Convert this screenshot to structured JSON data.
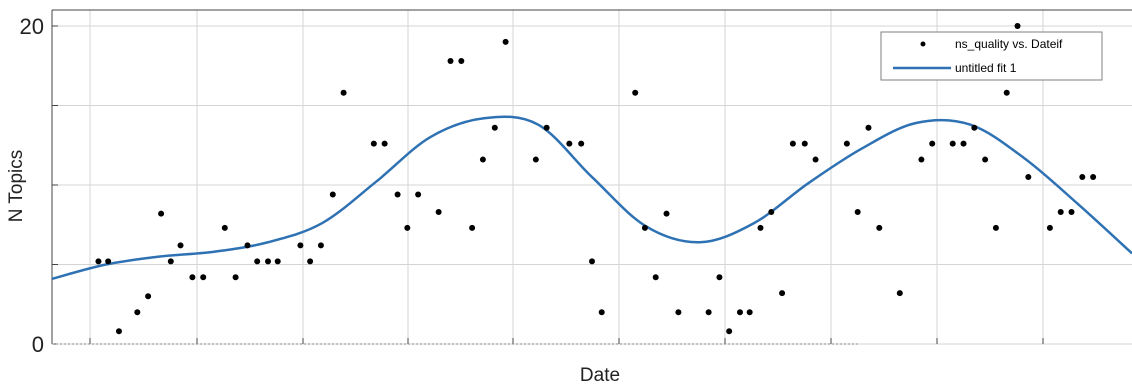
{
  "chart_data": {
    "type": "scatter",
    "title": "",
    "xlabel": "Date",
    "ylabel": "N Topics",
    "x_tick_labels": [],
    "y_ticks": [
      {
        "value": 0,
        "label": "0"
      },
      {
        "value": 5,
        "label": ""
      },
      {
        "value": 10,
        "label": ""
      },
      {
        "value": 15,
        "label": ""
      },
      {
        "value": 20,
        "label": "20"
      }
    ],
    "xlim": [
      0,
      100
    ],
    "ylim": [
      0,
      20
    ],
    "grid": true,
    "legend_position": "top-right",
    "series": [
      {
        "name": "ns_quality vs. Dateif",
        "kind": "points",
        "color": "#000000",
        "x": [
          4.3,
          5.2,
          6.2,
          7.9,
          8.9,
          10.1,
          11.0,
          11.9,
          13.0,
          14.0,
          16.0,
          17.0,
          18.1,
          19.0,
          20.0,
          20.9,
          23.0,
          23.9,
          24.9,
          26.0,
          27.0,
          29.8,
          30.8,
          32.0,
          32.9,
          33.9,
          35.8,
          36.9,
          37.9,
          38.9,
          39.9,
          41.0,
          42.0,
          44.8,
          45.8,
          47.9,
          49.0,
          50.0,
          50.9,
          54.0,
          54.9,
          55.9,
          56.9,
          58.0,
          60.8,
          61.8,
          62.7,
          63.7,
          64.6,
          65.6,
          66.6,
          67.6,
          68.6,
          69.7,
          70.7,
          73.6,
          74.6,
          75.6,
          76.6,
          78.5,
          80.5,
          81.5,
          83.4,
          84.4,
          85.4,
          86.4,
          87.4,
          88.4,
          89.4,
          90.4,
          92.4,
          93.4,
          94.4,
          95.4,
          96.4
        ],
        "y": [
          5.2,
          5.2,
          0.8,
          2.0,
          3.0,
          8.2,
          5.2,
          6.2,
          4.2,
          4.2,
          7.3,
          4.2,
          6.2,
          5.2,
          5.2,
          5.2,
          6.2,
          5.2,
          6.2,
          9.4,
          15.8,
          12.6,
          12.6,
          9.4,
          7.3,
          9.4,
          8.3,
          17.8,
          17.8,
          7.3,
          11.6,
          13.6,
          19.0,
          11.6,
          13.6,
          12.6,
          12.6,
          5.2,
          2.0,
          15.8,
          7.3,
          4.2,
          8.2,
          2.0,
          2.0,
          4.2,
          0.8,
          2.0,
          2.0,
          7.3,
          8.3,
          3.2,
          12.6,
          12.6,
          11.6,
          12.6,
          8.3,
          13.6,
          7.3,
          3.2,
          11.6,
          12.6,
          12.6,
          12.6,
          13.6,
          11.6,
          7.3,
          15.8,
          20.0,
          10.5,
          7.3,
          8.3,
          8.3,
          10.5,
          10.5
        ]
      },
      {
        "name": "untitled fit 1",
        "kind": "line",
        "color": "#2f72b4",
        "x": [
          0,
          5,
          10,
          15,
          20,
          25,
          30,
          35,
          40,
          45,
          50,
          55,
          60,
          65,
          70,
          75,
          80,
          85,
          90,
          95,
          100
        ],
        "y": [
          4.1,
          5.0,
          5.5,
          5.8,
          6.4,
          7.6,
          10.2,
          13.0,
          14.2,
          13.8,
          10.5,
          7.4,
          6.4,
          7.6,
          10.1,
          12.3,
          13.9,
          13.8,
          11.7,
          8.8,
          5.7
        ]
      }
    ]
  }
}
